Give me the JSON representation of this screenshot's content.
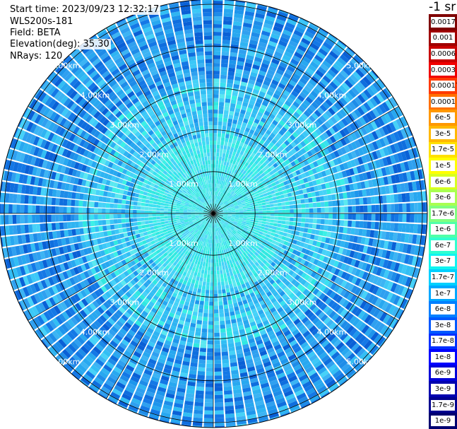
{
  "info": {
    "start_time": "Start time: 2023/09/23 12:32:17",
    "instrument": "WLS200s-181",
    "field": "Field: BETA",
    "elevation": "Elevation(deg): 35.30",
    "nrays": "NRays: 120"
  },
  "colorbar": {
    "unit": "-1 sr",
    "labels": [
      "0.0017",
      "0.001",
      "0.0006",
      "0.0003",
      "0.00017",
      "0.0001",
      "6e-5",
      "3e-5",
      "1.7e-5",
      "1e-5",
      "6e-6",
      "3e-6",
      "1.7e-6",
      "1e-6",
      "6e-7",
      "3e-7",
      "1.7e-7",
      "1e-7",
      "6e-8",
      "3e-8",
      "1.7e-8",
      "1e-8",
      "6e-9",
      "3e-9",
      "1.7e-9",
      "1e-9"
    ],
    "colors": [
      "#7f0000",
      "#a00000",
      "#c80000",
      "#f00000",
      "#ff3a00",
      "#ff7000",
      "#ff9800",
      "#ffb800",
      "#ffe000",
      "#ffff00",
      "#d8ff20",
      "#a8ff50",
      "#80ff80",
      "#50ffa8",
      "#30ffd0",
      "#10f4f0",
      "#00d0ff",
      "#00a8ff",
      "#0080ff",
      "#0058ff",
      "#0030ff",
      "#0000ff",
      "#0000d8",
      "#0000b0",
      "#000090",
      "#000070"
    ]
  },
  "range_rings": [
    "1.00km",
    "2.00km",
    "3.00km",
    "4.00km",
    "5.00km"
  ],
  "palette": {
    "near": [
      "#3cf0e6",
      "#38e0f0",
      "#46d2f8",
      "#30e8e0",
      "#5ae8f0"
    ],
    "mid": [
      "#32bef4",
      "#28a8f0",
      "#3cc8f8",
      "#1e96ec",
      "#46d2f8",
      "#2fb4f2"
    ],
    "far": [
      "#1e8ce8",
      "#0f6ede",
      "#2fa0f0",
      "#1478e6",
      "#3cb4f4",
      "#0a60d6",
      "#28a8f0"
    ]
  }
}
